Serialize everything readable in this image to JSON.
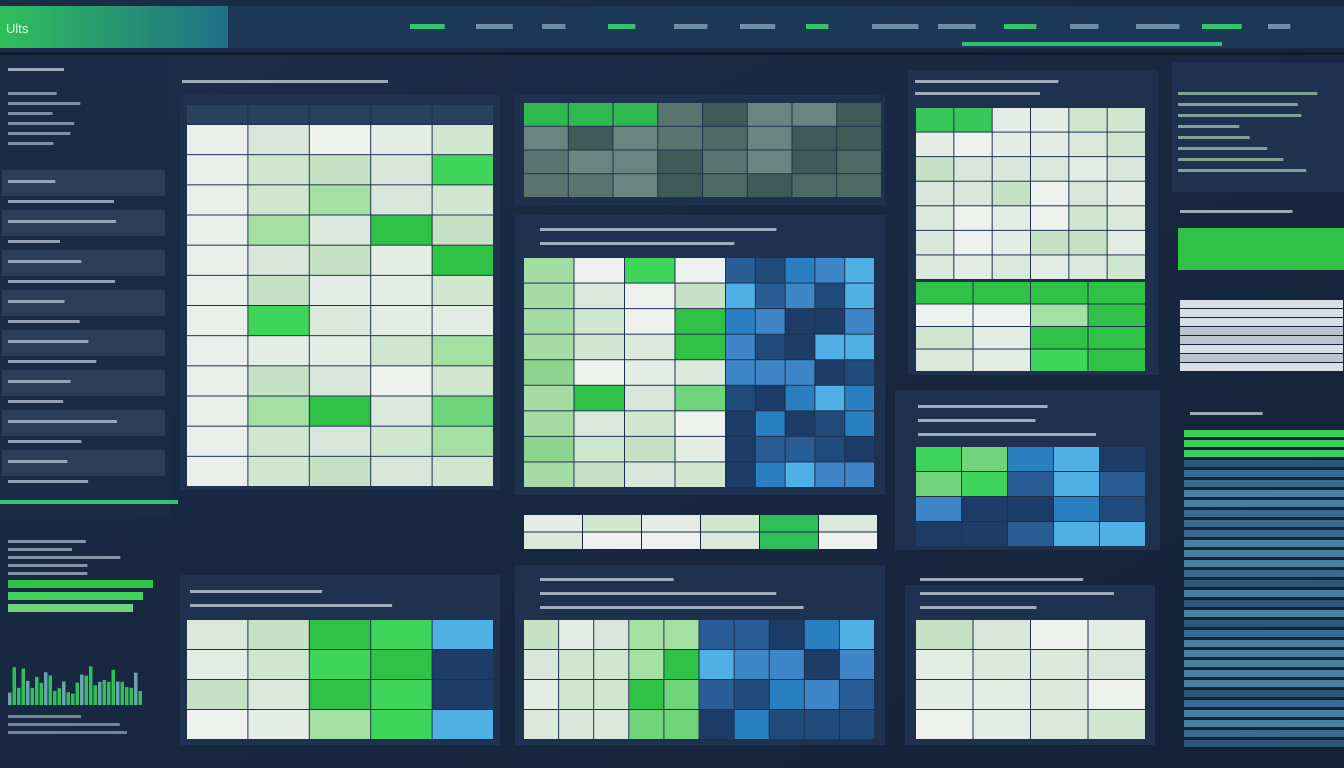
{
  "header": {
    "title": "Ults"
  }
}
